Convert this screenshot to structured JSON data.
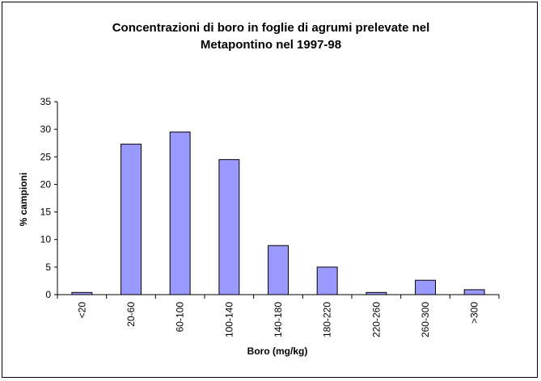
{
  "chart_data": {
    "type": "bar",
    "title_lines": [
      "Concentrazioni di boro in foglie di agrumi prelevate nel",
      "Metapontino nel 1997-98"
    ],
    "xlabel": "Boro (mg/kg)",
    "ylabel": "% campioni",
    "categories": [
      "<20",
      "20-60",
      "60-100",
      "100-140",
      "140-180",
      "180-220",
      "220-260",
      "260-300",
      ">300"
    ],
    "values": [
      0.4,
      27.3,
      29.5,
      24.5,
      8.9,
      5.0,
      0.4,
      2.6,
      0.9
    ],
    "ylim": [
      0,
      35
    ],
    "yticks": [
      0,
      5,
      10,
      15,
      20,
      25,
      30,
      35
    ],
    "grid": false,
    "legend": "none",
    "bar_color": "#9999ff",
    "bar_edge_color": "#000000"
  }
}
